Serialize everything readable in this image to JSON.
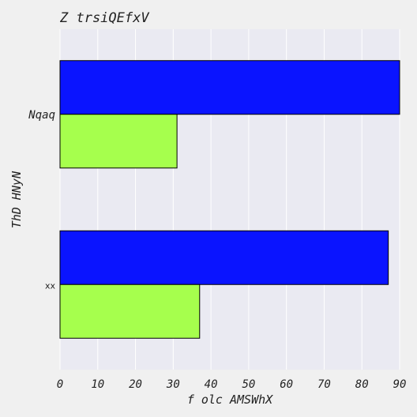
{
  "chart_data": {
    "type": "bar",
    "orientation": "horizontal",
    "title": "Z  trsiQEfxV",
    "xlabel": "f olc AMSWhX",
    "ylabel": "ThD HNyN",
    "categories": [
      "Nqaq",
      "xx"
    ],
    "series": [
      {
        "values": [
          90,
          87
        ],
        "color": "#0a14ff"
      },
      {
        "values": [
          31,
          37
        ],
        "color": "#a6ff4d"
      }
    ],
    "xlim": [
      0,
      90
    ],
    "xticks": [
      0,
      10,
      20,
      30,
      40,
      50,
      60,
      70,
      80,
      90
    ],
    "grid": true,
    "legend": "none",
    "colors": {
      "plot_background": "#eaeaf2",
      "page_background": "#f0f0f0",
      "grid": "#ffffff"
    }
  }
}
